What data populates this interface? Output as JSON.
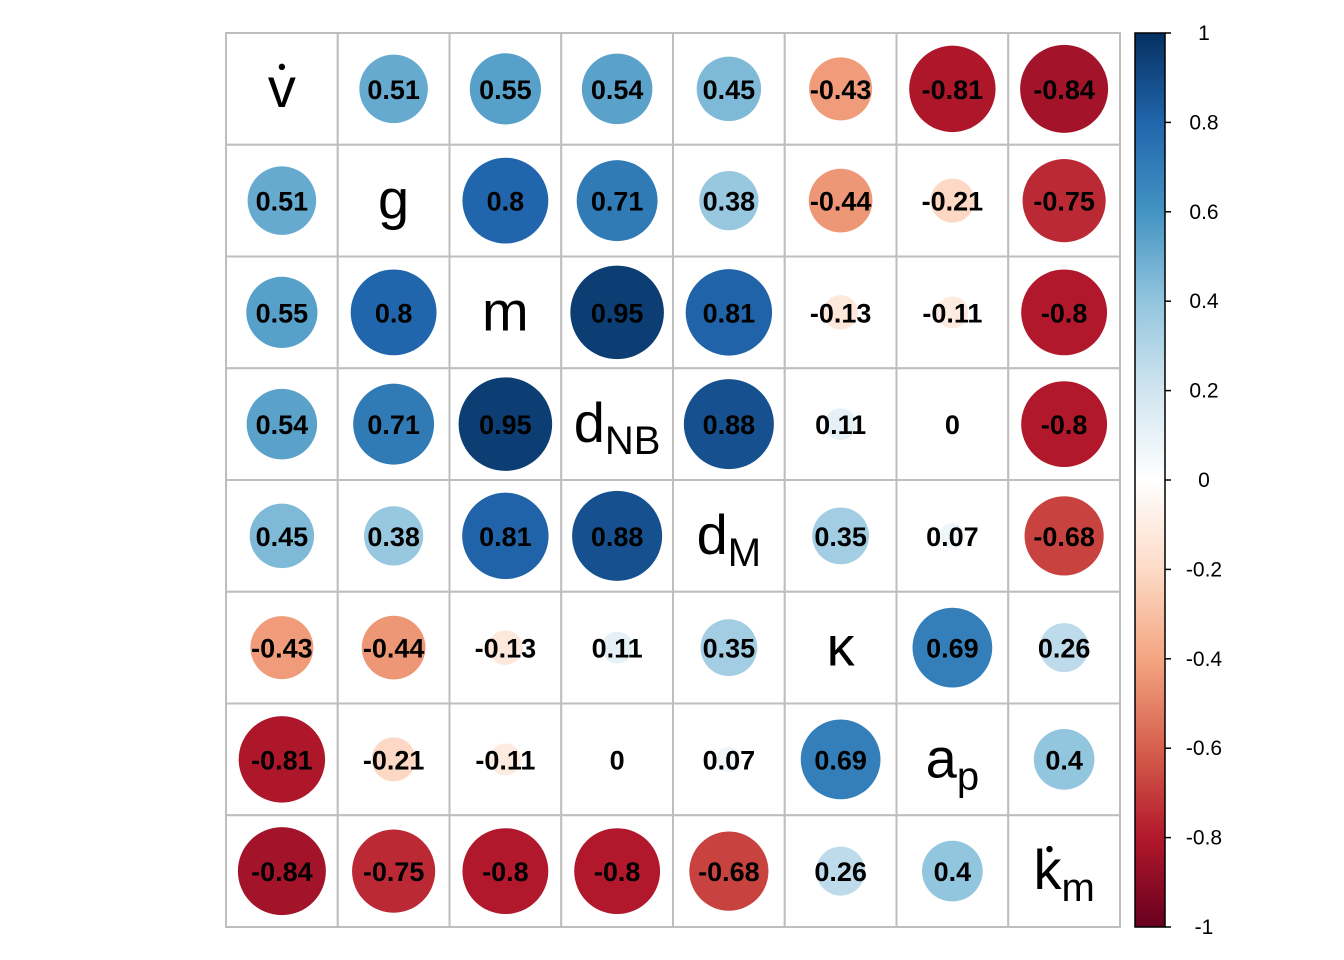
{
  "chart_data": {
    "type": "heatmap",
    "variables": [
      {
        "name": "v",
        "sub": "",
        "dot": true
      },
      {
        "name": "g",
        "sub": "",
        "dot": false
      },
      {
        "name": "m",
        "sub": "",
        "dot": false
      },
      {
        "name": "d",
        "sub": "NB",
        "dot": false
      },
      {
        "name": "d",
        "sub": "M",
        "dot": false
      },
      {
        "name": "κ",
        "sub": "",
        "dot": false
      },
      {
        "name": "a",
        "sub": "p",
        "dot": false
      },
      {
        "name": "k",
        "sub": "m",
        "dot": true
      }
    ],
    "matrix": [
      [
        null,
        0.51,
        0.55,
        0.54,
        0.45,
        -0.43,
        -0.81,
        -0.84
      ],
      [
        0.51,
        null,
        0.8,
        0.71,
        0.38,
        -0.44,
        -0.21,
        -0.75
      ],
      [
        0.55,
        0.8,
        null,
        0.95,
        0.81,
        -0.13,
        -0.11,
        -0.8
      ],
      [
        0.54,
        0.71,
        0.95,
        null,
        0.88,
        0.11,
        0,
        -0.8
      ],
      [
        0.45,
        0.38,
        0.81,
        0.88,
        null,
        0.35,
        0.07,
        -0.68
      ],
      [
        -0.43,
        -0.44,
        -0.13,
        0.11,
        0.35,
        null,
        0.69,
        0.26
      ],
      [
        -0.81,
        -0.21,
        -0.11,
        0,
        0.07,
        0.69,
        null,
        0.4
      ],
      [
        -0.84,
        -0.75,
        -0.8,
        -0.8,
        -0.68,
        0.26,
        0.4,
        null
      ]
    ],
    "colorbar": {
      "range": [
        -1,
        1
      ],
      "ticks": [
        "1",
        "0.8",
        "0.6",
        "0.4",
        "0.2",
        "0",
        "-0.2",
        "-0.4",
        "-0.6",
        "-0.8",
        "-1"
      ],
      "colors": [
        "#67001F",
        "#B2182B",
        "#D6604D",
        "#F4A582",
        "#FDDBC7",
        "#FFFFFF",
        "#D1E5F0",
        "#92C5DE",
        "#4393C3",
        "#2166AC",
        "#053061"
      ]
    },
    "grid": true,
    "legend": "right",
    "title": "",
    "xlabel": "",
    "ylabel": ""
  }
}
